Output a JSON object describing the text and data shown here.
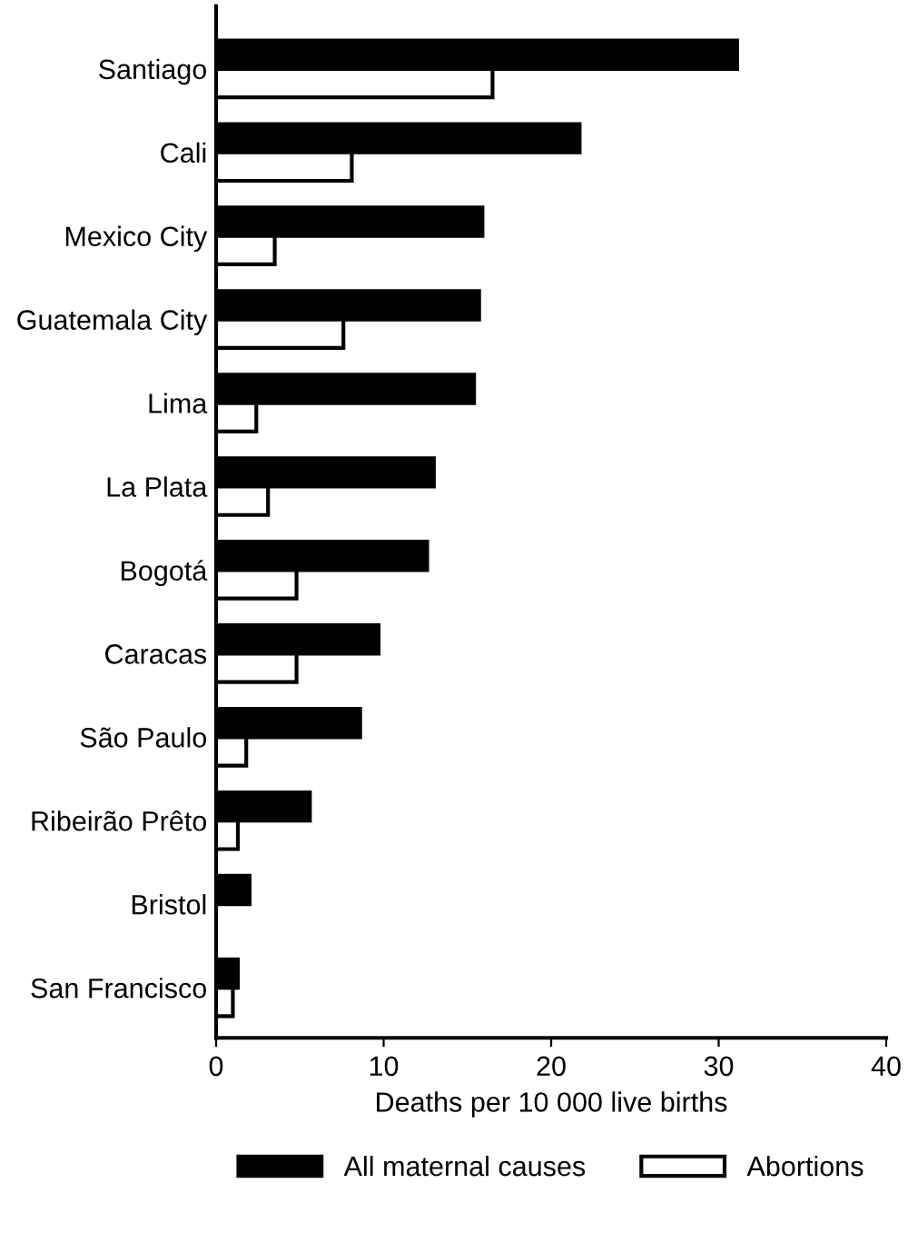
{
  "chart_data": {
    "type": "bar",
    "orientation": "horizontal",
    "xlabel": "Deaths per 10 000 live births",
    "categories": [
      "Santiago",
      "Cali",
      "Mexico City",
      "Guatemala City",
      "Lima",
      "La Plata",
      "Bogotá",
      "Caracas",
      "São Paulo",
      "Ribeirão Prêto",
      "Bristol",
      "San Francisco"
    ],
    "series": [
      {
        "name": "All maternal causes",
        "color": "#000000",
        "values": [
          31.1,
          21.7,
          15.9,
          15.7,
          15.4,
          13.0,
          12.6,
          9.7,
          8.6,
          5.6,
          2.0,
          1.3
        ]
      },
      {
        "name": "Abortions",
        "color": "#ffffff",
        "values": [
          16.5,
          8.1,
          3.5,
          7.6,
          2.4,
          3.1,
          4.8,
          4.8,
          1.8,
          1.3,
          null,
          1.0
        ]
      }
    ],
    "xlim": [
      0,
      40
    ],
    "xticks": [
      0,
      10,
      20,
      30,
      40
    ],
    "grid": false,
    "legend": "bottom"
  }
}
